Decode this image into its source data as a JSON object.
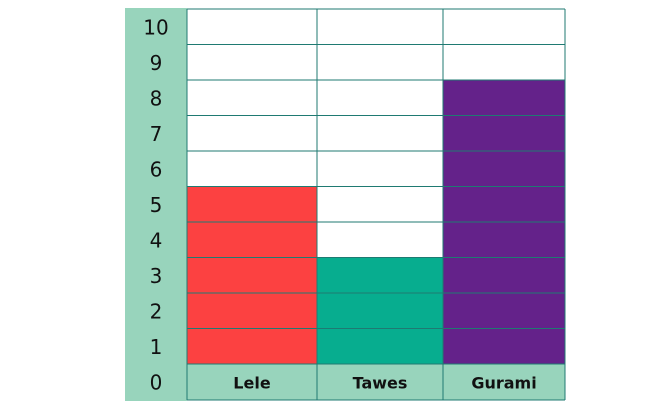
{
  "chart_data": {
    "type": "bar",
    "categories": [
      "Lele",
      "Tawes",
      "Gurami"
    ],
    "values": [
      5,
      3,
      8
    ],
    "colors": [
      "#fc4141",
      "#07ad8f",
      "#64228a"
    ],
    "ylim": [
      0,
      10
    ],
    "yticks": [
      0,
      1,
      2,
      3,
      4,
      5,
      6,
      7,
      8,
      9,
      10
    ],
    "grid": true
  }
}
